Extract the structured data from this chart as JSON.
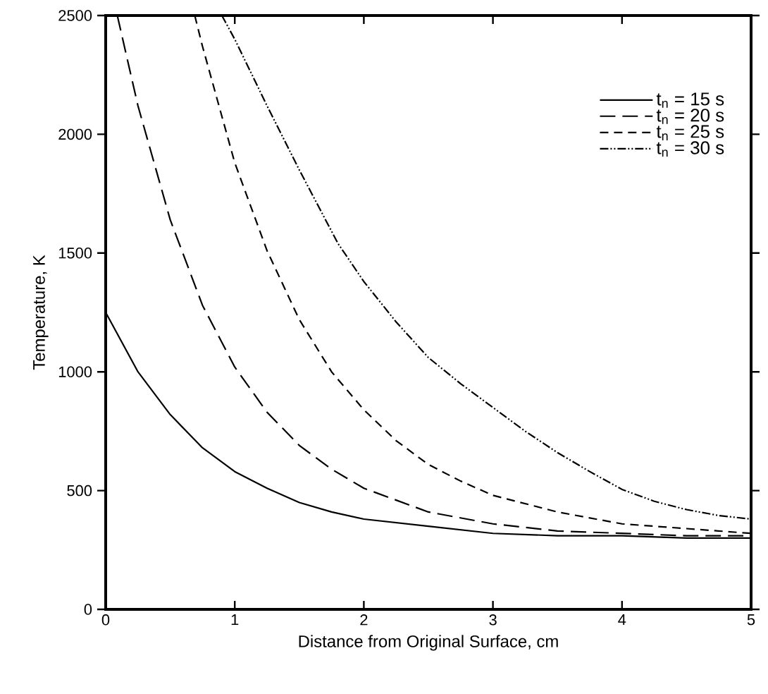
{
  "chart_data": {
    "type": "line",
    "xlabel": "Distance from Original Surface, cm",
    "ylabel": "Temperature, K",
    "xlim": [
      0,
      5
    ],
    "ylim": [
      0,
      2500
    ],
    "xticks": [
      0,
      1,
      2,
      3,
      4,
      5
    ],
    "yticks": [
      0,
      500,
      1000,
      1500,
      2000,
      2500
    ],
    "grid": false,
    "legend": "top right",
    "series": [
      {
        "name": "t$_{n}$ = 15 s",
        "color": "#000000",
        "line_style": "solid",
        "x": [
          0,
          0.25,
          0.5,
          0.75,
          1,
          1.25,
          1.5,
          1.75,
          2,
          2.5,
          3,
          3.5,
          4,
          4.5,
          5
        ],
        "values": [
          1250,
          1000,
          820,
          680,
          580,
          510,
          450,
          410,
          380,
          350,
          320,
          310,
          310,
          300,
          300
        ]
      },
      {
        "name": "t$_{n}$ = 20 s",
        "color": "#000000",
        "line_style": "dashed",
        "x": [
          0.09,
          0.25,
          0.5,
          0.75,
          1,
          1.25,
          1.5,
          1.75,
          2,
          2.5,
          3,
          3.5,
          4,
          4.5,
          5
        ],
        "values": [
          2500,
          2120,
          1640,
          1280,
          1020,
          830,
          690,
          590,
          510,
          410,
          360,
          330,
          320,
          310,
          310
        ]
      },
      {
        "name": "t$_{n}$ = 25 s",
        "color": "#000000",
        "line_style": "dashed",
        "x": [
          0.69,
          0.75,
          1,
          1.25,
          1.5,
          1.75,
          2,
          2.25,
          2.5,
          2.75,
          3,
          3.5,
          4,
          4.5,
          5
        ],
        "values": [
          2500,
          2370,
          1880,
          1510,
          1220,
          1000,
          840,
          710,
          610,
          540,
          480,
          410,
          360,
          340,
          320
        ]
      },
      {
        "name": "t$_{n}$ = 30 s",
        "color": "#000000",
        "line_style": "dashdotdotted",
        "x": [
          0.9,
          1,
          1.25,
          1.5,
          1.8,
          2,
          2.25,
          2.5,
          2.75,
          3,
          3.25,
          3.5,
          3.75,
          4,
          4.25,
          4.5,
          4.75,
          5
        ],
        "values": [
          2500,
          2400,
          2120,
          1850,
          1540,
          1380,
          1210,
          1060,
          950,
          850,
          750,
          660,
          580,
          505,
          455,
          420,
          395,
          380
        ]
      }
    ]
  }
}
